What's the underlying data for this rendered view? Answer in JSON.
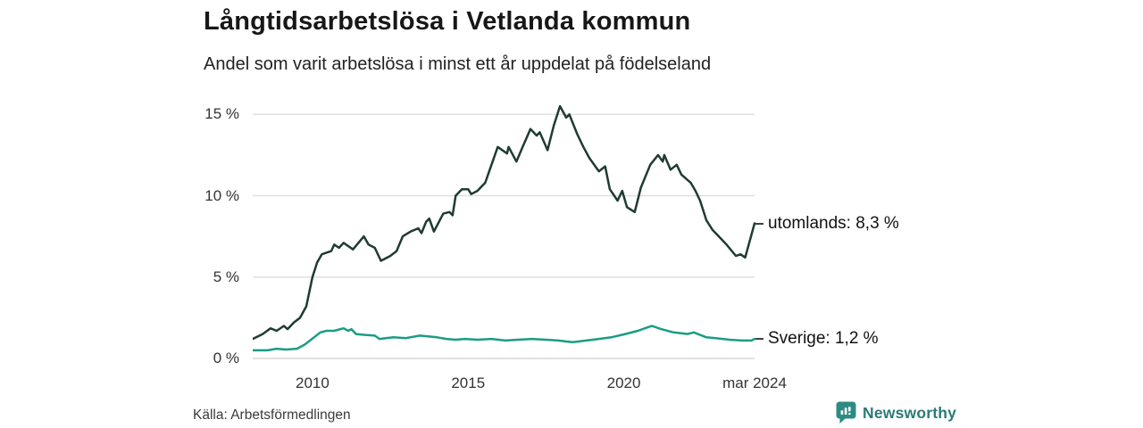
{
  "chart_data": {
    "type": "line",
    "title": "Långtidsarbetslösa i Vetlanda kommun",
    "subtitle": "Andel som varit arbetslösa i minst ett år uppdelat på födelseland",
    "xlabel": "",
    "ylabel": "",
    "x_range": [
      2008.08,
      2024.2
    ],
    "y_range": [
      0,
      16
    ],
    "grid": true,
    "legend_position": "line-end-labels-right",
    "x_axis": {
      "ticks": [
        {
          "label": "2010",
          "x": 2010
        },
        {
          "label": "2015",
          "x": 2015
        },
        {
          "label": "2020",
          "x": 2020
        },
        {
          "label": "mar 2024",
          "x": 2024.2
        }
      ]
    },
    "y_axis": {
      "ticks": [
        {
          "label": "15 %",
          "value": 15
        },
        {
          "label": "10 %",
          "value": 10
        },
        {
          "label": "5 %",
          "value": 5
        },
        {
          "label": "0 %",
          "value": 0
        }
      ]
    },
    "series": [
      {
        "name": "utomlands",
        "color": "#1f3b33",
        "end_label": "utomlands: 8,3 %",
        "end_value": 8.3,
        "x": [
          2008.08,
          2008.4,
          2008.65,
          2008.85,
          2009.08,
          2009.2,
          2009.4,
          2009.6,
          2009.8,
          2010.0,
          2010.15,
          2010.3,
          2010.6,
          2010.7,
          2010.85,
          2011.0,
          2011.3,
          2011.65,
          2011.8,
          2012.0,
          2012.2,
          2012.5,
          2012.7,
          2012.9,
          2013.15,
          2013.4,
          2013.5,
          2013.65,
          2013.75,
          2013.9,
          2014.2,
          2014.4,
          2014.5,
          2014.6,
          2014.8,
          2015.0,
          2015.1,
          2015.3,
          2015.55,
          2015.75,
          2015.95,
          2016.25,
          2016.3,
          2016.55,
          2016.75,
          2017.0,
          2017.2,
          2017.3,
          2017.55,
          2017.75,
          2017.95,
          2018.15,
          2018.25,
          2018.5,
          2018.7,
          2018.9,
          2019.2,
          2019.4,
          2019.55,
          2019.8,
          2019.95,
          2020.1,
          2020.35,
          2020.55,
          2020.85,
          2021.1,
          2021.25,
          2021.3,
          2021.5,
          2021.7,
          2021.85,
          2022.15,
          2022.3,
          2022.45,
          2022.65,
          2022.85,
          2023.15,
          2023.3,
          2023.6,
          2023.75,
          2023.9,
          2024.0,
          2024.2
        ],
        "y": [
          1.2,
          1.5,
          1.85,
          1.7,
          2.0,
          1.8,
          2.2,
          2.5,
          3.2,
          5.0,
          5.9,
          6.4,
          6.6,
          7.0,
          6.8,
          7.1,
          6.7,
          7.5,
          7.0,
          6.8,
          6.0,
          6.3,
          6.6,
          7.5,
          7.8,
          8.0,
          7.7,
          8.4,
          8.6,
          7.8,
          8.9,
          9.0,
          8.8,
          10.0,
          10.4,
          10.4,
          10.1,
          10.3,
          10.8,
          11.9,
          13.0,
          12.6,
          13.0,
          12.1,
          13.0,
          14.1,
          13.7,
          13.9,
          12.8,
          14.3,
          15.5,
          14.8,
          15.0,
          13.8,
          13.0,
          12.3,
          11.5,
          11.8,
          10.4,
          9.7,
          10.3,
          9.3,
          9.0,
          10.5,
          11.9,
          12.5,
          12.1,
          12.5,
          11.6,
          11.9,
          11.3,
          10.8,
          10.3,
          9.7,
          8.5,
          7.9,
          7.3,
          7.0,
          6.3,
          6.4,
          6.2,
          6.9,
          8.3
        ]
      },
      {
        "name": "Sverige",
        "color": "#1a9c85",
        "end_label": "Sverige: 1,2 %",
        "end_value": 1.2,
        "x": [
          2008.08,
          2008.55,
          2008.85,
          2009.15,
          2009.5,
          2009.75,
          2010.05,
          2010.25,
          2010.45,
          2010.7,
          2011.0,
          2011.15,
          2011.25,
          2011.4,
          2011.65,
          2012.0,
          2012.15,
          2012.6,
          2013.0,
          2013.45,
          2013.75,
          2014.0,
          2014.3,
          2014.6,
          2014.9,
          2015.3,
          2015.75,
          2016.2,
          2016.6,
          2017.05,
          2017.5,
          2017.9,
          2018.35,
          2018.8,
          2019.2,
          2019.6,
          2020.05,
          2020.45,
          2020.75,
          2020.9,
          2021.2,
          2021.6,
          2022.05,
          2022.25,
          2022.65,
          2022.95,
          2023.4,
          2023.8,
          2024.1,
          2024.2
        ],
        "y": [
          0.5,
          0.5,
          0.6,
          0.55,
          0.6,
          0.85,
          1.3,
          1.6,
          1.7,
          1.7,
          1.85,
          1.7,
          1.8,
          1.5,
          1.45,
          1.4,
          1.2,
          1.3,
          1.25,
          1.4,
          1.35,
          1.3,
          1.2,
          1.15,
          1.2,
          1.15,
          1.2,
          1.1,
          1.15,
          1.2,
          1.15,
          1.1,
          1.0,
          1.1,
          1.2,
          1.3,
          1.5,
          1.7,
          1.9,
          2.0,
          1.8,
          1.6,
          1.5,
          1.6,
          1.3,
          1.25,
          1.15,
          1.1,
          1.1,
          1.2
        ]
      }
    ]
  },
  "footer": {
    "source": "Källa: Arbetsförmedlingen",
    "brand": "Newsworthy"
  },
  "colors": {
    "series_dark": "#1f3b33",
    "series_teal": "#1a9c85",
    "brand_teal": "#2a7a78",
    "brand_icon": "#2e8b84",
    "grid": "#e0e0e0",
    "zero_line": "#d7d7d7",
    "text": "#171717"
  }
}
